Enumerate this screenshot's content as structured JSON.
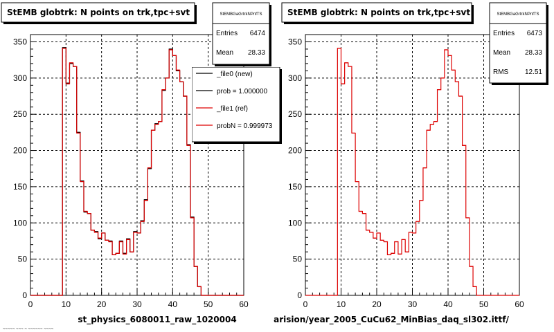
{
  "chart_data": [
    {
      "type": "histogram",
      "title": "StEMB globtrk: N points on trk,tpc+svt",
      "xlabel": "st_physics_6080011_raw_1020004",
      "xlim": [
        0,
        60
      ],
      "ylim": [
        0,
        360
      ],
      "x_ticks": [
        0,
        10,
        20,
        30,
        40,
        50,
        60
      ],
      "y_ticks": [
        0,
        50,
        100,
        150,
        200,
        250,
        300,
        350
      ],
      "grid": true,
      "stats": {
        "name": "StEMBGaGrtrkNPnfTS",
        "rows": [
          {
            "label": "Entries",
            "value": "6474"
          },
          {
            "label": "Mean",
            "value": "28.33"
          }
        ]
      },
      "legend": [
        {
          "label": "_file0 (new)",
          "color": "#000000"
        },
        {
          "label": "prob = 1.000000",
          "color": "#000000"
        },
        {
          "label": "_file1 (ref)",
          "color": "#dd0000"
        },
        {
          "label": "probN = 0.999973",
          "color": "#dd0000"
        }
      ],
      "series": [
        {
          "name": "_file0 (new)",
          "color": "#000000",
          "x": [
            9,
            10,
            11,
            12,
            13,
            14,
            15,
            16,
            17,
            18,
            19,
            20,
            21,
            22,
            23,
            24,
            25,
            26,
            27,
            28,
            29,
            30,
            31,
            32,
            33,
            34,
            35,
            36,
            37,
            38,
            39,
            40,
            41,
            42,
            43,
            44,
            45,
            46,
            47
          ],
          "values": [
            342,
            293,
            320,
            316,
            225,
            158,
            115,
            113,
            90,
            88,
            78,
            86,
            76,
            75,
            56,
            58,
            75,
            58,
            78,
            60,
            88,
            86,
            103,
            132,
            175,
            228,
            237,
            240,
            283,
            300,
            340,
            331,
            310,
            295,
            275,
            208,
            108,
            40,
            12
          ]
        },
        {
          "name": "_file1 (ref)",
          "color": "#dd0000",
          "x": [
            9,
            10,
            11,
            12,
            13,
            14,
            15,
            16,
            17,
            18,
            19,
            20,
            21,
            22,
            23,
            24,
            25,
            26,
            27,
            28,
            29,
            30,
            31,
            32,
            33,
            34,
            35,
            36,
            37,
            38,
            39,
            40,
            41,
            42,
            43,
            44,
            45,
            46,
            47
          ],
          "values": [
            341,
            292,
            321,
            316,
            224,
            157,
            116,
            113,
            90,
            87,
            79,
            86,
            76,
            74,
            56,
            58,
            74,
            57,
            77,
            60,
            87,
            86,
            102,
            131,
            176,
            228,
            236,
            240,
            284,
            300,
            339,
            331,
            311,
            295,
            275,
            207,
            107,
            40,
            12
          ]
        }
      ]
    },
    {
      "type": "histogram",
      "title": "StEMB globtrk: N points on trk,tpc+svt",
      "xlabel": "arision/year_2005_CuCu62_MinBias_daq_sl302.ittf/",
      "xlim": [
        0,
        60
      ],
      "ylim": [
        0,
        360
      ],
      "x_ticks": [
        0,
        10,
        20,
        30,
        40,
        50,
        60
      ],
      "y_ticks": [
        0,
        50,
        100,
        150,
        200,
        250,
        300,
        350
      ],
      "grid": true,
      "stats": {
        "name": "StEMBGaGrtrkNPnfTS",
        "rows": [
          {
            "label": "Entries",
            "value": "6473"
          },
          {
            "label": "Mean",
            "value": "28.33"
          },
          {
            "label": "RMS",
            "value": "12.51"
          }
        ]
      },
      "series": [
        {
          "name": "",
          "color": "#dd0000",
          "x": [
            9,
            10,
            11,
            12,
            13,
            14,
            15,
            16,
            17,
            18,
            19,
            20,
            21,
            22,
            23,
            24,
            25,
            26,
            27,
            28,
            29,
            30,
            31,
            32,
            33,
            34,
            35,
            36,
            37,
            38,
            39,
            40,
            41,
            42,
            43,
            44,
            45,
            46,
            47
          ],
          "values": [
            341,
            292,
            321,
            316,
            224,
            157,
            116,
            113,
            90,
            87,
            79,
            86,
            76,
            74,
            56,
            58,
            74,
            57,
            77,
            60,
            87,
            86,
            102,
            131,
            176,
            228,
            236,
            240,
            284,
            300,
            339,
            331,
            311,
            295,
            275,
            207,
            107,
            40,
            12
          ]
        }
      ]
    }
  ],
  "footer_text": "~~~~~ ~~~ ~ ~~~~~~ ~~~~"
}
